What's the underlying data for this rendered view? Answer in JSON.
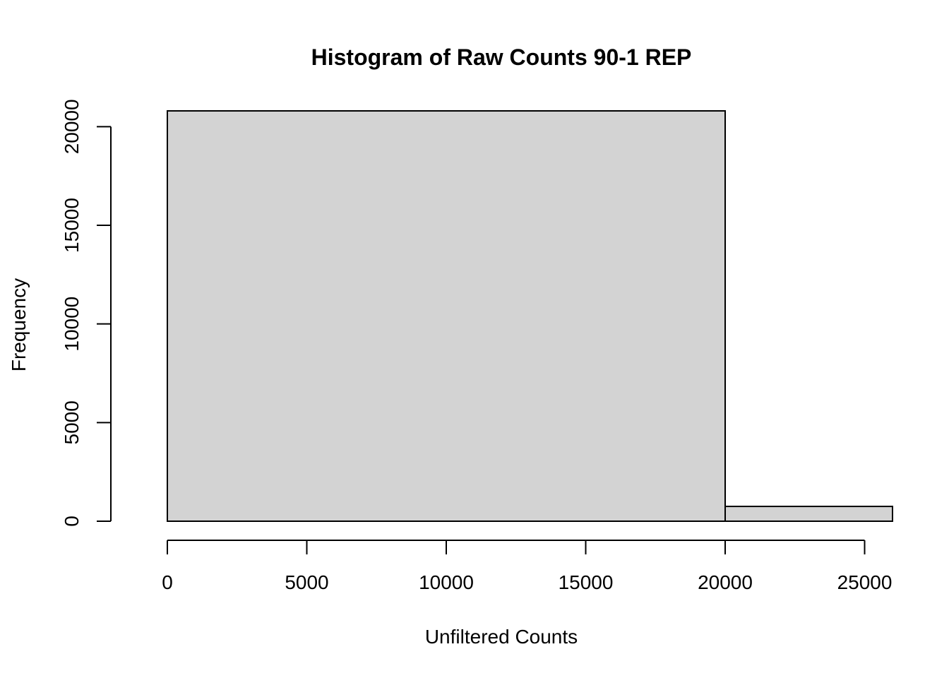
{
  "chart_data": {
    "type": "bar",
    "title": "Histogram of Raw Counts 90-1 REP",
    "xlabel": "Unfiltered Counts",
    "ylabel": "Frequency",
    "bins": [
      {
        "from": 0,
        "to": 20000,
        "count": 20800
      },
      {
        "from": 20000,
        "to": 26000,
        "count": 750
      }
    ],
    "xlim": [
      0,
      26000
    ],
    "ylim": [
      0,
      20800
    ],
    "x_ticks": [
      0,
      5000,
      10000,
      15000,
      20000,
      25000
    ],
    "y_ticks": [
      0,
      5000,
      10000,
      15000,
      20000
    ],
    "fill_color": "#d3d3d3",
    "grid": false,
    "legend": "none"
  }
}
